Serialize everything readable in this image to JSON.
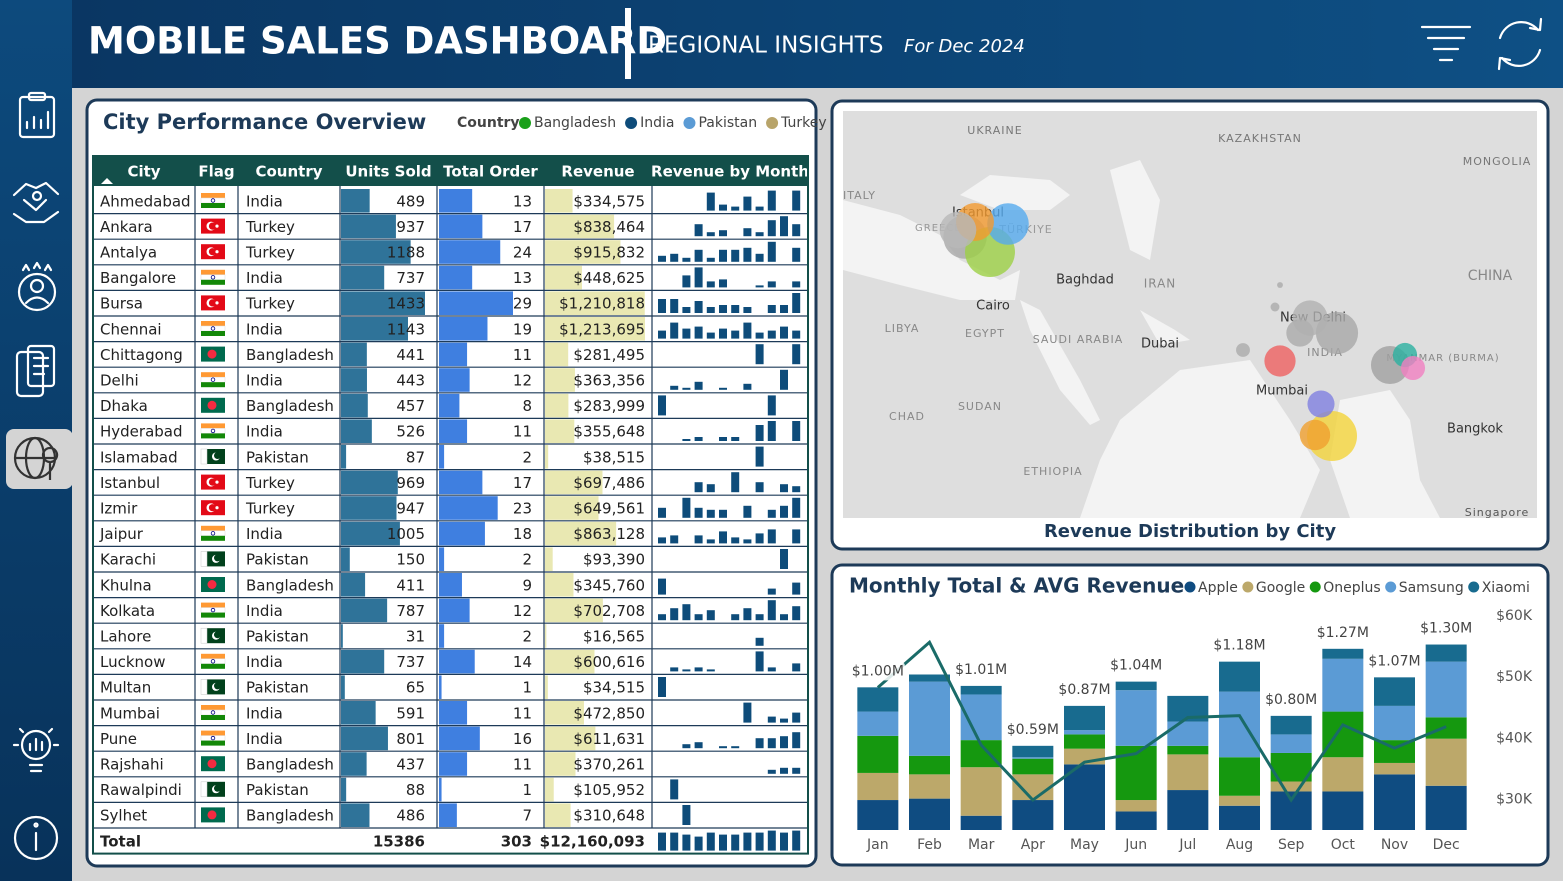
{
  "header": {
    "title": "MOBILE SALES DASHBOARD",
    "subtitle": "REGIONAL INSIGHTS",
    "date": "For Dec 2024"
  },
  "table": {
    "title": "City Performance Overview",
    "legend_title": "Country",
    "legend": [
      {
        "name": "Bangladesh",
        "color": "#1aa01a"
      },
      {
        "name": "India",
        "color": "#0e4c7a"
      },
      {
        "name": "Pakistan",
        "color": "#5b9bd5"
      },
      {
        "name": "Turkey",
        "color": "#b8a46a"
      }
    ],
    "columns": [
      "City",
      "Flag",
      "Country",
      "Units Sold",
      "Total Order",
      "Revenue",
      "Revenue by Month"
    ],
    "rows": [
      {
        "city": "Ahmedabad",
        "country": "India",
        "units": 489,
        "orders": 13,
        "revenue": 334575,
        "revenue_label": "$334,575",
        "monthly": [
          0,
          0,
          0,
          0,
          9,
          3,
          2,
          7,
          2,
          10,
          0,
          10
        ]
      },
      {
        "city": "Ankara",
        "country": "Turkey",
        "units": 937,
        "orders": 17,
        "revenue": 838464,
        "revenue_label": "$838,464",
        "monthly": [
          0,
          0,
          0,
          6,
          2,
          3,
          0,
          4,
          2,
          8,
          10,
          6
        ]
      },
      {
        "city": "Antalya",
        "country": "Turkey",
        "units": 1188,
        "orders": 24,
        "revenue": 915832,
        "revenue_label": "$915,832",
        "monthly": [
          3,
          4,
          2,
          6,
          2,
          6,
          6,
          7,
          4,
          10,
          0,
          7
        ]
      },
      {
        "city": "Bangalore",
        "country": "India",
        "units": 737,
        "orders": 13,
        "revenue": 448625,
        "revenue_label": "$448,625",
        "monthly": [
          0,
          0,
          6,
          10,
          3,
          4,
          0,
          0,
          1,
          3,
          0,
          3
        ]
      },
      {
        "city": "Bursa",
        "country": "Turkey",
        "units": 1433,
        "orders": 29,
        "revenue": 1210818,
        "revenue_label": "$1,210,818",
        "monthly": [
          7,
          7,
          3,
          6,
          3,
          4,
          4,
          3,
          0,
          4,
          4,
          10
        ]
      },
      {
        "city": "Chennai",
        "country": "India",
        "units": 1143,
        "orders": 19,
        "revenue": 1213695,
        "revenue_label": "$1,213,695",
        "monthly": [
          4,
          8,
          5,
          6,
          3,
          5,
          4,
          8,
          3,
          4,
          6,
          4
        ]
      },
      {
        "city": "Chittagong",
        "country": "Bangladesh",
        "units": 441,
        "orders": 11,
        "revenue": 281495,
        "revenue_label": "$281,495",
        "monthly": [
          0,
          0,
          0,
          0,
          0,
          0,
          0,
          0,
          10,
          0,
          0,
          10
        ]
      },
      {
        "city": "Delhi",
        "country": "India",
        "units": 443,
        "orders": 12,
        "revenue": 363356,
        "revenue_label": "$363,356",
        "monthly": [
          0,
          2,
          1,
          4,
          0,
          1,
          0,
          3,
          0,
          0,
          10,
          0
        ]
      },
      {
        "city": "Dhaka",
        "country": "Bangladesh",
        "units": 457,
        "orders": 8,
        "revenue": 283999,
        "revenue_label": "$283,999",
        "monthly": [
          10,
          0,
          0,
          0,
          0,
          0,
          0,
          0,
          0,
          10,
          0,
          0
        ]
      },
      {
        "city": "Hyderabad",
        "country": "India",
        "units": 526,
        "orders": 11,
        "revenue": 355648,
        "revenue_label": "$355,648",
        "monthly": [
          0,
          0,
          1,
          2,
          0,
          2,
          2,
          0,
          8,
          10,
          0,
          10
        ]
      },
      {
        "city": "Islamabad",
        "country": "Pakistan",
        "units": 87,
        "orders": 2,
        "revenue": 38515,
        "revenue_label": "$38,515",
        "monthly": [
          0,
          0,
          0,
          0,
          0,
          0,
          0,
          0,
          10,
          0,
          0,
          0
        ]
      },
      {
        "city": "Istanbul",
        "country": "Turkey",
        "units": 969,
        "orders": 17,
        "revenue": 697486,
        "revenue_label": "$697,486",
        "monthly": [
          0,
          0,
          0,
          5,
          4,
          0,
          10,
          0,
          5,
          0,
          4,
          3
        ]
      },
      {
        "city": "Izmir",
        "country": "Turkey",
        "units": 947,
        "orders": 23,
        "revenue": 649561,
        "revenue_label": "$649,561",
        "monthly": [
          5,
          0,
          10,
          5,
          4,
          4,
          0,
          6,
          0,
          4,
          6,
          10
        ]
      },
      {
        "city": "Jaipur",
        "country": "India",
        "units": 1005,
        "orders": 18,
        "revenue": 863128,
        "revenue_label": "$863,128",
        "monthly": [
          3,
          4,
          0,
          4,
          2,
          6,
          3,
          2,
          5,
          7,
          0,
          7
        ]
      },
      {
        "city": "Karachi",
        "country": "Pakistan",
        "units": 150,
        "orders": 2,
        "revenue": 93390,
        "revenue_label": "$93,390",
        "monthly": [
          0,
          0,
          0,
          0,
          0,
          0,
          0,
          0,
          0,
          0,
          10,
          0
        ]
      },
      {
        "city": "Khulna",
        "country": "Bangladesh",
        "units": 411,
        "orders": 9,
        "revenue": 345760,
        "revenue_label": "$345,760",
        "monthly": [
          8,
          0,
          0,
          0,
          0,
          0,
          0,
          0,
          0,
          3,
          0,
          6
        ]
      },
      {
        "city": "Kolkata",
        "country": "India",
        "units": 787,
        "orders": 12,
        "revenue": 702708,
        "revenue_label": "$702,708",
        "monthly": [
          3,
          6,
          8,
          3,
          5,
          0,
          3,
          6,
          3,
          10,
          3,
          7
        ]
      },
      {
        "city": "Lahore",
        "country": "Pakistan",
        "units": 31,
        "orders": 2,
        "revenue": 16565,
        "revenue_label": "$16,565",
        "monthly": [
          0,
          0,
          0,
          0,
          0,
          0,
          0,
          0,
          4,
          0,
          0,
          0
        ]
      },
      {
        "city": "Lucknow",
        "country": "India",
        "units": 737,
        "orders": 14,
        "revenue": 600616,
        "revenue_label": "$600,616",
        "monthly": [
          0,
          2,
          1,
          2,
          1,
          0,
          0,
          0,
          10,
          2,
          0,
          4
        ]
      },
      {
        "city": "Multan",
        "country": "Pakistan",
        "units": 65,
        "orders": 1,
        "revenue": 34515,
        "revenue_label": "$34,515",
        "monthly": [
          10,
          0,
          0,
          0,
          0,
          0,
          0,
          0,
          0,
          0,
          0,
          0
        ]
      },
      {
        "city": "Mumbai",
        "country": "India",
        "units": 591,
        "orders": 11,
        "revenue": 472850,
        "revenue_label": "$472,850",
        "monthly": [
          0,
          0,
          0,
          0,
          0,
          0,
          0,
          10,
          0,
          3,
          2,
          5
        ]
      },
      {
        "city": "Pune",
        "country": "India",
        "units": 801,
        "orders": 16,
        "revenue": 611631,
        "revenue_label": "$611,631",
        "monthly": [
          0,
          0,
          2,
          3,
          0,
          1,
          1,
          0,
          5,
          5,
          6,
          8
        ]
      },
      {
        "city": "Rajshahi",
        "country": "Bangladesh",
        "units": 437,
        "orders": 11,
        "revenue": 370261,
        "revenue_label": "$370,261",
        "monthly": [
          0,
          0,
          0,
          0,
          0,
          0,
          0,
          0,
          0,
          2,
          3,
          3
        ]
      },
      {
        "city": "Rawalpindi",
        "country": "Pakistan",
        "units": 88,
        "orders": 1,
        "revenue": 105952,
        "revenue_label": "$105,952",
        "monthly": [
          0,
          10,
          0,
          0,
          0,
          0,
          0,
          0,
          0,
          0,
          0,
          0
        ]
      },
      {
        "city": "Sylhet",
        "country": "Bangladesh",
        "units": 486,
        "orders": 7,
        "revenue": 310648,
        "revenue_label": "$310,648",
        "monthly": [
          0,
          0,
          10,
          0,
          0,
          0,
          0,
          0,
          0,
          0,
          0,
          0
        ]
      }
    ],
    "total": {
      "label": "Total",
      "units": 15386,
      "orders": 303,
      "revenue": 12160093,
      "revenue_label": "$12,160,093",
      "monthly": [
        9,
        9,
        8,
        7,
        9,
        8,
        8,
        9,
        9,
        10,
        9,
        10
      ]
    }
  },
  "map": {
    "caption": "Revenue Distribution by City",
    "labels": [
      "UKRAINE",
      "KAZAKHSTAN",
      "MONGOLIA",
      "ITALY",
      "GREECE",
      "Istanbul",
      "TÜRKIYE",
      "Baghdad",
      "IRAN",
      "CHINA",
      "Cairo",
      "LIBYA",
      "EGYPT",
      "SAUDI ARABIA",
      "Dubai",
      "New Delhi",
      "INDIA",
      "MYANMAR (BURMA)",
      "Mumbai",
      "CHAD",
      "SUDAN",
      "ETHIOPIA",
      "Bangkok",
      "Singapore"
    ]
  },
  "chart_data": {
    "type": "bar",
    "title": "Monthly Total & AVG Revenue",
    "categories": [
      "Jan",
      "Feb",
      "Mar",
      "Apr",
      "May",
      "Jun",
      "Jul",
      "Aug",
      "Sep",
      "Oct",
      "Nov",
      "Dec"
    ],
    "ylim": [
      0,
      1.5
    ],
    "series": [
      {
        "name": "Apple",
        "color": "#0f4c81",
        "values": [
          0.21,
          0.22,
          0.1,
          0.21,
          0.46,
          0.13,
          0.28,
          0.17,
          0.27,
          0.27,
          0.39,
          0.31
        ]
      },
      {
        "name": "Google",
        "color": "#bca86a",
        "values": [
          0.19,
          0.17,
          0.34,
          0.18,
          0.11,
          0.08,
          0.25,
          0.07,
          0.07,
          0.24,
          0.08,
          0.33
        ]
      },
      {
        "name": "Oneplus",
        "color": "#15980f",
        "values": [
          0.26,
          0.13,
          0.19,
          0.11,
          0.1,
          0.38,
          0.06,
          0.27,
          0.2,
          0.32,
          0.16,
          0.15
        ]
      },
      {
        "name": "Samsung",
        "color": "#5b9bd5",
        "values": [
          0.17,
          0.52,
          0.32,
          0.01,
          0.03,
          0.39,
          0.17,
          0.46,
          0.13,
          0.37,
          0.24,
          0.39
        ]
      },
      {
        "name": "Xiaomi",
        "color": "#186b8f",
        "values": [
          0.17,
          0.05,
          0.06,
          0.08,
          0.17,
          0.06,
          0.18,
          0.21,
          0.13,
          0.07,
          0.2,
          0.12
        ]
      }
    ],
    "totals": {
      "values": [
        1.0,
        1.09,
        1.01,
        0.59,
        0.87,
        1.04,
        0.95,
        1.18,
        0.8,
        1.27,
        1.07,
        1.3
      ],
      "value_labels": [
        "$1.00M",
        null,
        "$1.01M",
        "$0.59M",
        "$0.87M",
        "$1.04M",
        null,
        "$1.18M",
        "$0.80M",
        "$1.27M",
        "$1.07M",
        "$1.30M"
      ]
    },
    "avg_line": {
      "axis": "y2",
      "color": "#1a6b68",
      "values": [
        48300,
        55700,
        38900,
        29900,
        36100,
        37500,
        43400,
        43700,
        29900,
        42200,
        38400,
        41900
      ]
    },
    "y2lim": [
      25000,
      60000
    ],
    "y2ticks": [
      {
        "value": 30000,
        "label": "$30K"
      },
      {
        "value": 40000,
        "label": "$40K"
      },
      {
        "value": 50000,
        "label": "$50K"
      },
      {
        "value": 60000,
        "label": "$60K"
      }
    ]
  }
}
